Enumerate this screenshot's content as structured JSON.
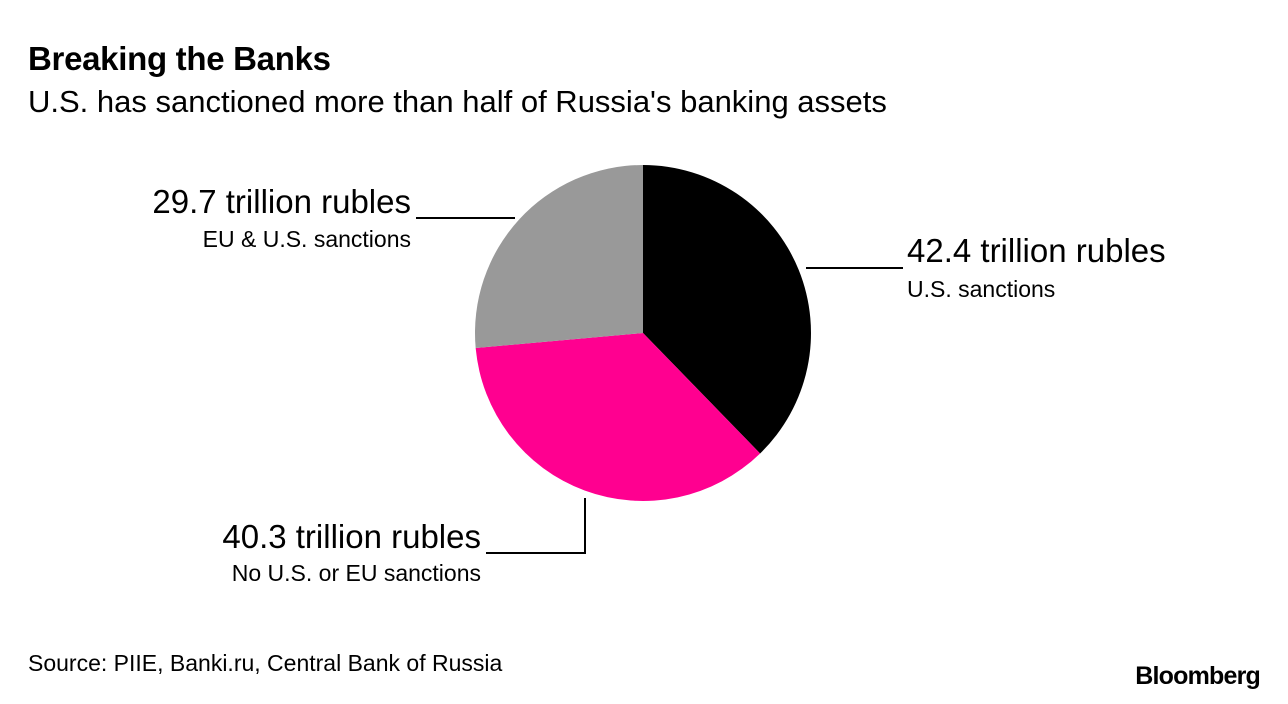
{
  "header": {
    "title": "Breaking the Banks",
    "subtitle": "U.S. has sanctioned more than half of Russia's banking assets"
  },
  "footer": {
    "source": "Source: PIIE, Banki.ru, Central Bank of Russia",
    "brand": "Bloomberg"
  },
  "chart_data": {
    "type": "pie",
    "title": "Breaking the Banks",
    "subtitle": "U.S. has sanctioned more than half of Russia's banking assets",
    "unit": "trillion rubles",
    "slices": [
      {
        "category": "U.S. sanctions",
        "value": 42.4,
        "value_label": "42.4 trillion rubles",
        "color": "#000000"
      },
      {
        "category": "No U.S. or EU sanctions",
        "value": 40.3,
        "value_label": "40.3 trillion rubles",
        "color": "#ff0090"
      },
      {
        "category": "EU & U.S. sanctions",
        "value": 29.7,
        "value_label": "29.7 trillion rubles",
        "color": "#999999"
      }
    ],
    "start": "12 o'clock",
    "direction": "clockwise"
  }
}
